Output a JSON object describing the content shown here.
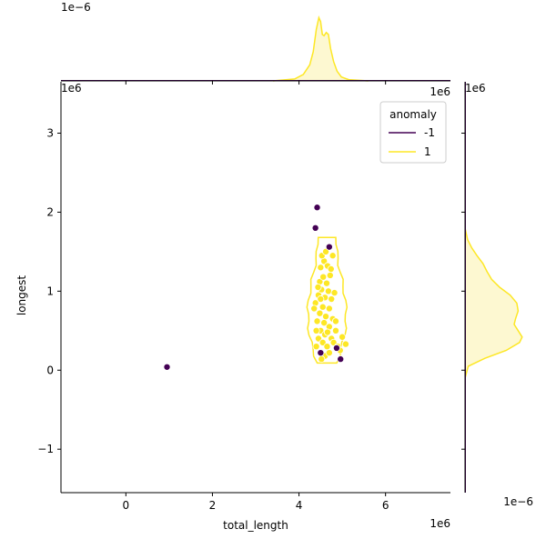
{
  "chart_data": {
    "type": "scatter",
    "subtype": "jointplot-with-kde-contours-and-marginal-densities",
    "xlabel": "total_length",
    "ylabel": "longest",
    "x_offset_label": "1e6",
    "y_offset_label": "1e6",
    "x_offset_label_top_panel": "1e6",
    "top_marginal_offset_label": "1e−6",
    "right_marginal_offset_label": "1e−6",
    "xlim": [
      -1.5,
      7.5
    ],
    "ylim": [
      -1.55,
      3.65
    ],
    "x_ticks": [
      0,
      2,
      4,
      6
    ],
    "x_tick_labels": [
      "0",
      "2",
      "4",
      "6"
    ],
    "y_ticks": [
      -1,
      0,
      1,
      2,
      3
    ],
    "y_tick_labels": [
      "−1",
      "0",
      "1",
      "2",
      "3"
    ],
    "grid": false,
    "legend": {
      "title": "anomaly",
      "placement": "top-right",
      "entries": [
        {
          "label": "-1",
          "color": "#440154"
        },
        {
          "label": "1",
          "color": "#fde725"
        }
      ]
    },
    "series": [
      {
        "name": "-1",
        "color": "#440154",
        "points": [
          {
            "x": 0.95,
            "y": 0.04
          },
          {
            "x": 4.42,
            "y": 2.06
          },
          {
            "x": 4.38,
            "y": 1.8
          },
          {
            "x": 4.7,
            "y": 1.56
          },
          {
            "x": 4.96,
            "y": 0.14
          },
          {
            "x": 4.87,
            "y": 0.28
          },
          {
            "x": 4.5,
            "y": 0.22
          }
        ]
      },
      {
        "name": "1",
        "color": "#fde725",
        "points": [
          {
            "x": 4.4,
            "y": 0.3
          },
          {
            "x": 4.45,
            "y": 0.4
          },
          {
            "x": 4.5,
            "y": 0.5
          },
          {
            "x": 4.55,
            "y": 0.35
          },
          {
            "x": 4.6,
            "y": 0.45
          },
          {
            "x": 4.65,
            "y": 0.3
          },
          {
            "x": 4.7,
            "y": 0.55
          },
          {
            "x": 4.75,
            "y": 0.4
          },
          {
            "x": 4.8,
            "y": 0.35
          },
          {
            "x": 4.85,
            "y": 0.5
          },
          {
            "x": 4.9,
            "y": 0.3
          },
          {
            "x": 5.0,
            "y": 0.42
          },
          {
            "x": 5.08,
            "y": 0.33
          },
          {
            "x": 4.95,
            "y": 0.25
          },
          {
            "x": 4.6,
            "y": 0.18
          },
          {
            "x": 4.52,
            "y": 0.14
          },
          {
            "x": 4.42,
            "y": 0.62
          },
          {
            "x": 4.48,
            "y": 0.72
          },
          {
            "x": 4.55,
            "y": 0.8
          },
          {
            "x": 4.62,
            "y": 0.68
          },
          {
            "x": 4.7,
            "y": 0.78
          },
          {
            "x": 4.78,
            "y": 0.65
          },
          {
            "x": 4.38,
            "y": 0.85
          },
          {
            "x": 4.45,
            "y": 0.95
          },
          {
            "x": 4.52,
            "y": 1.02
          },
          {
            "x": 4.6,
            "y": 0.92
          },
          {
            "x": 4.68,
            "y": 1.0
          },
          {
            "x": 4.75,
            "y": 0.9
          },
          {
            "x": 4.82,
            "y": 0.98
          },
          {
            "x": 4.48,
            "y": 1.12
          },
          {
            "x": 4.56,
            "y": 1.18
          },
          {
            "x": 4.64,
            "y": 1.1
          },
          {
            "x": 4.72,
            "y": 1.2
          },
          {
            "x": 4.5,
            "y": 1.3
          },
          {
            "x": 4.58,
            "y": 1.38
          },
          {
            "x": 4.66,
            "y": 1.32
          },
          {
            "x": 4.74,
            "y": 1.28
          },
          {
            "x": 4.53,
            "y": 1.45
          },
          {
            "x": 4.62,
            "y": 1.5
          },
          {
            "x": 4.35,
            "y": 0.78
          },
          {
            "x": 4.4,
            "y": 0.5
          },
          {
            "x": 4.58,
            "y": 0.6
          },
          {
            "x": 4.66,
            "y": 0.48
          },
          {
            "x": 4.85,
            "y": 0.62
          },
          {
            "x": 4.5,
            "y": 0.9
          },
          {
            "x": 4.78,
            "y": 1.45
          },
          {
            "x": 4.44,
            "y": 1.05
          },
          {
            "x": 4.7,
            "y": 0.22
          }
        ]
      }
    ],
    "kde_contours": [
      {
        "series": "1",
        "color": "#fde725"
      }
    ],
    "marginal_densities": {
      "top_for_series_1": {
        "color": "#fde725",
        "fill": "#fdf6c5",
        "points": [
          [
            3.4,
            0.0
          ],
          [
            3.9,
            0.03
          ],
          [
            4.1,
            0.1
          ],
          [
            4.25,
            0.25
          ],
          [
            4.33,
            0.45
          ],
          [
            4.4,
            0.8
          ],
          [
            4.46,
            0.98
          ],
          [
            4.5,
            0.92
          ],
          [
            4.54,
            0.72
          ],
          [
            4.58,
            0.7
          ],
          [
            4.63,
            0.75
          ],
          [
            4.68,
            0.72
          ],
          [
            4.73,
            0.5
          ],
          [
            4.8,
            0.3
          ],
          [
            4.88,
            0.15
          ],
          [
            4.98,
            0.06
          ],
          [
            5.15,
            0.02
          ],
          [
            5.6,
            0.0
          ]
        ]
      },
      "right_for_series_1": {
        "color": "#fde725",
        "fill": "#fdf6c5",
        "points": [
          [
            -0.1,
            0.0
          ],
          [
            0.05,
            0.05
          ],
          [
            0.15,
            0.3
          ],
          [
            0.25,
            0.62
          ],
          [
            0.35,
            0.82
          ],
          [
            0.42,
            0.86
          ],
          [
            0.5,
            0.8
          ],
          [
            0.58,
            0.74
          ],
          [
            0.65,
            0.76
          ],
          [
            0.75,
            0.8
          ],
          [
            0.85,
            0.78
          ],
          [
            0.95,
            0.68
          ],
          [
            1.05,
            0.52
          ],
          [
            1.15,
            0.4
          ],
          [
            1.25,
            0.33
          ],
          [
            1.35,
            0.27
          ],
          [
            1.45,
            0.18
          ],
          [
            1.55,
            0.1
          ],
          [
            1.65,
            0.04
          ],
          [
            1.8,
            0.0
          ]
        ]
      }
    }
  }
}
